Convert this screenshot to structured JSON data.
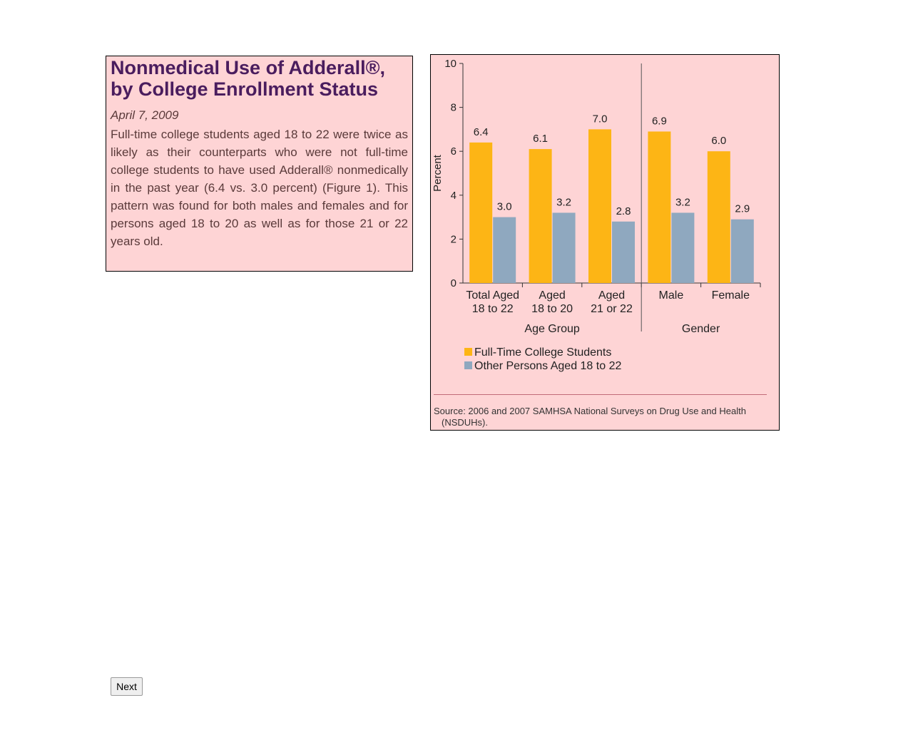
{
  "article": {
    "title": "Nonmedical Use of Adderall®, by College Enrollment Status",
    "date": "April 7, 2009",
    "body": "Full-time college students aged 18 to 22 were twice as likely as their counterparts who were not full-time college students to have used Adderall® nonmedically in the past year (6.4 vs. 3.0 percent) (Figure 1). This pattern was found for both males and females and for persons aged 18 to 20 as well as for those 21 or 22 years old."
  },
  "chart_data": {
    "type": "bar",
    "categories": [
      "Total Aged 18 to 22",
      "Aged 18 to 20",
      "Aged 21 or 22",
      "Male",
      "Female"
    ],
    "groups": [
      {
        "label": "Age Group",
        "categories": [
          "Total Aged 18 to 22",
          "Aged 18 to 20",
          "Aged 21 or 22"
        ]
      },
      {
        "label": "Gender",
        "categories": [
          "Male",
          "Female"
        ]
      }
    ],
    "series": [
      {
        "name": "Full-Time College Students",
        "values": [
          6.4,
          6.1,
          7.0,
          6.9,
          6.0
        ],
        "color": "#fdb515"
      },
      {
        "name": "Other Persons Aged 18 to 22",
        "values": [
          3.0,
          3.2,
          2.8,
          3.2,
          2.9
        ],
        "color": "#8fa8bf"
      }
    ],
    "ylabel": "Percent",
    "ylim": [
      0,
      10
    ],
    "yticks": [
      0,
      2,
      4,
      6,
      8,
      10
    ],
    "grid": false,
    "legend_position": "bottom-left",
    "source": "Source: 2006 and 2007 SAMHSA National Surveys on Drug Use and Health (NSDUHs)."
  },
  "navigation": {
    "next_label": "Next"
  }
}
